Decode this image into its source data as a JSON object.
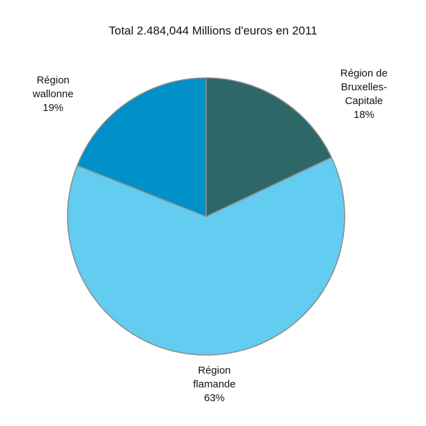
{
  "chart_data": {
    "type": "pie",
    "title": "Total 2.484,044 Millions d'euros en 2011",
    "slices": [
      {
        "label_lines": [
          "Région de",
          "Bruxelles-",
          "Capitale"
        ],
        "value": 18,
        "value_label": "18%",
        "color": "#2e6767"
      },
      {
        "label_lines": [
          "Région",
          "flamande"
        ],
        "value": 63,
        "value_label": "63%",
        "color": "#62ccf1"
      },
      {
        "label_lines": [
          "Région",
          "wallonne"
        ],
        "value": 19,
        "value_label": "19%",
        "color": "#0190c8"
      }
    ],
    "start_angle_deg": 0,
    "direction": "clockwise",
    "legend": "none"
  }
}
